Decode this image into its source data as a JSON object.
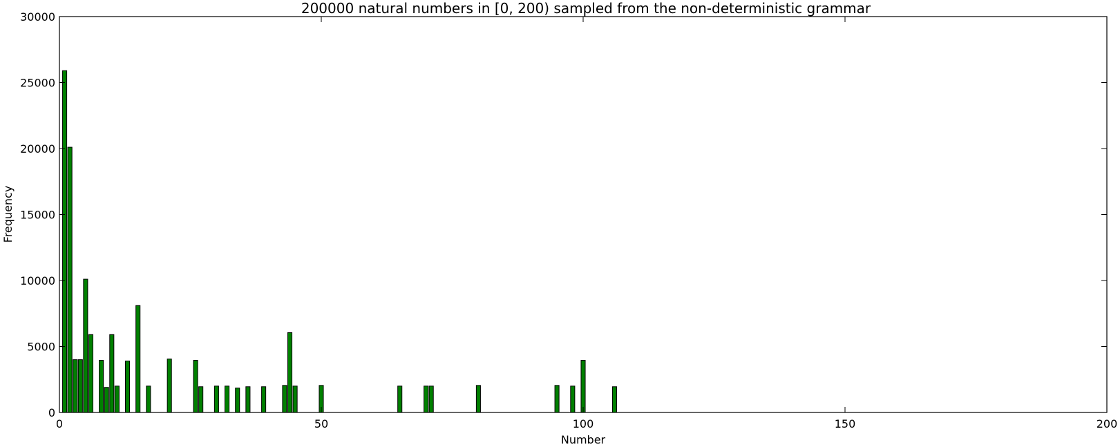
{
  "chart_data": {
    "type": "bar",
    "title": "200000 natural numbers in [0, 200) sampled from the non-deterministic grammar",
    "xlabel": "Number",
    "ylabel": "Frequency",
    "xlim": [
      0,
      200
    ],
    "ylim": [
      0,
      30000
    ],
    "xticks": [
      0,
      50,
      100,
      150,
      200
    ],
    "yticks": [
      0,
      5000,
      10000,
      15000,
      20000,
      25000,
      30000
    ],
    "grid": false,
    "legend": "none",
    "bar_color": "#008000",
    "x": [
      1,
      2,
      3,
      4,
      5,
      6,
      8,
      9,
      10,
      11,
      13,
      15,
      17,
      21,
      26,
      27,
      30,
      32,
      34,
      36,
      39,
      43,
      44,
      45,
      50,
      65,
      70,
      71,
      80,
      95,
      98,
      100,
      106
    ],
    "values": [
      25900,
      20100,
      4000,
      4000,
      10100,
      5900,
      3950,
      1900,
      5900,
      2000,
      3900,
      8100,
      2000,
      4050,
      3950,
      1950,
      2000,
      2000,
      1850,
      1950,
      1950,
      2050,
      6050,
      2000,
      2050,
      2000,
      2000,
      2000,
      2050,
      2050,
      2000,
      3950,
      1950
    ]
  }
}
